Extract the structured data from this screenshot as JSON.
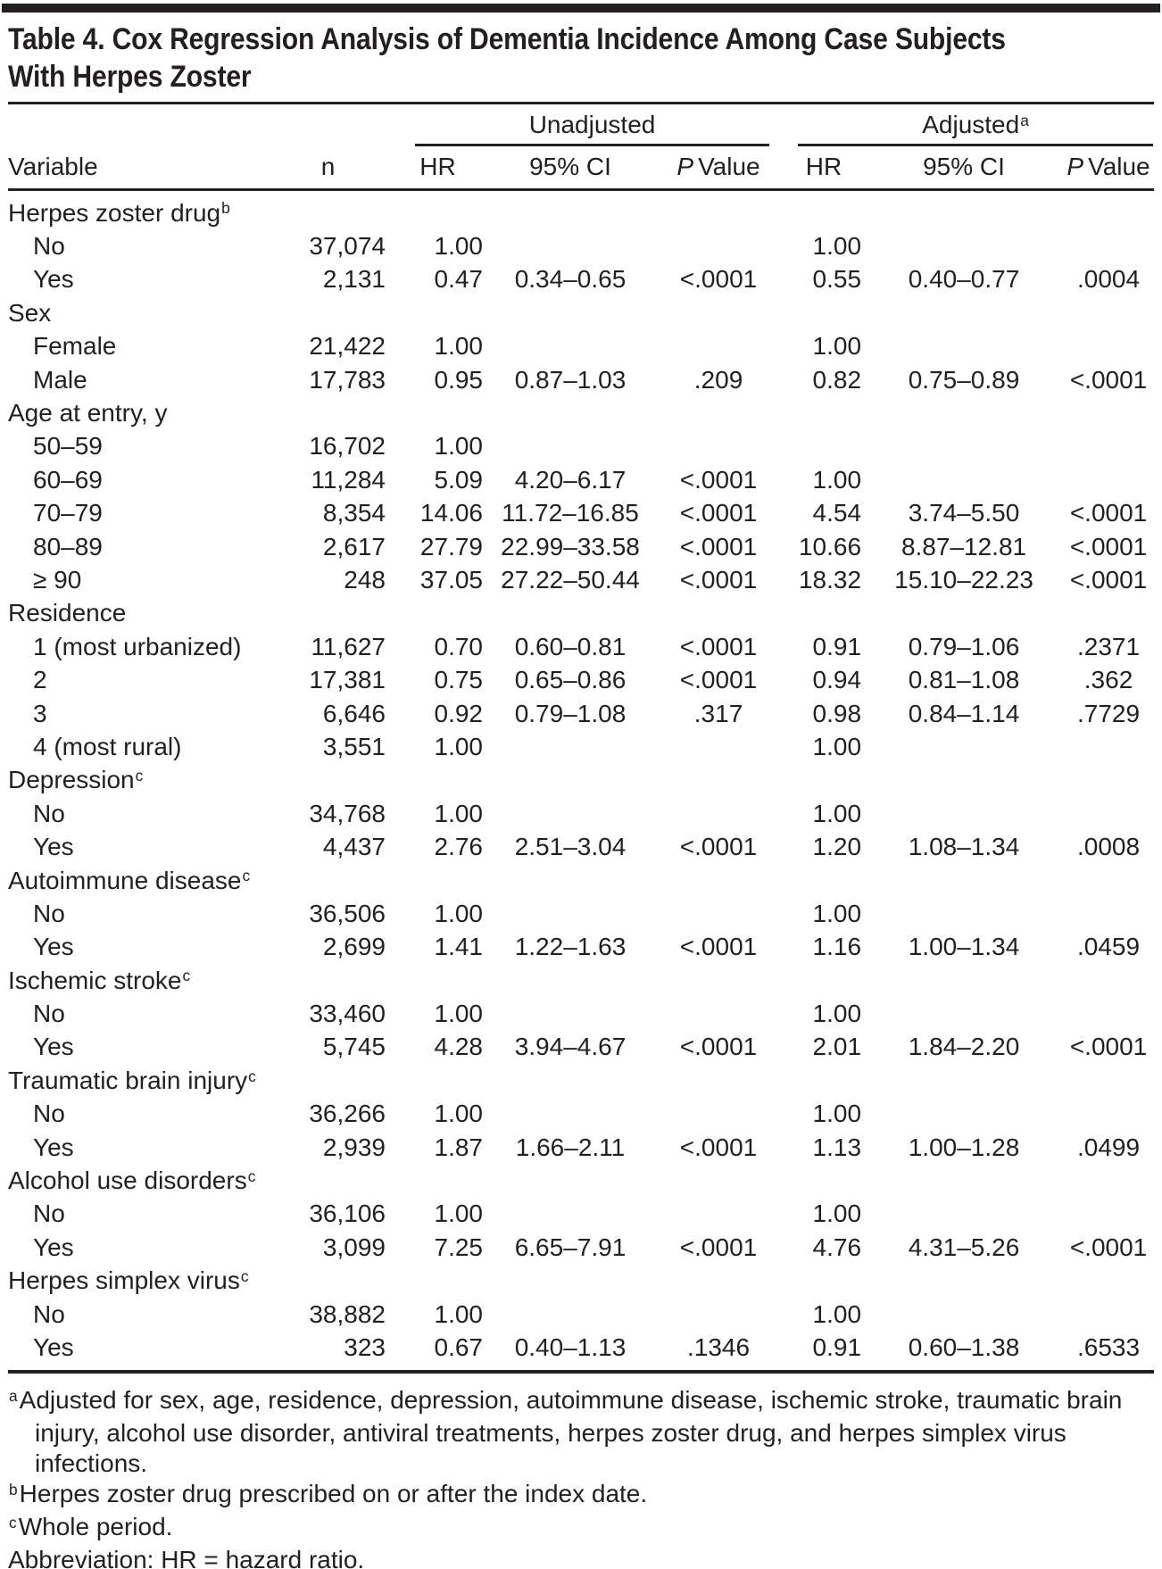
{
  "title": {
    "line1": "Table 4. Cox Regression Analysis of Dementia Incidence Among Case Subjects",
    "line2": "With Herpes Zoster"
  },
  "header": {
    "variable": "Variable",
    "n": "n",
    "unadjusted": "Unadjusted",
    "adjusted": "Adjusted",
    "adjusted_sup": "a",
    "hr": "HR",
    "ci": "95% CI",
    "p_italic": "P",
    "p_rest": "Value"
  },
  "rows": [
    {
      "type": "group",
      "label": "Herpes zoster drug",
      "sup": "b"
    },
    {
      "type": "item",
      "label": "No",
      "n": "37,074",
      "uhr": "1.00",
      "uci": "",
      "up": "",
      "ahr": "1.00",
      "aci": "",
      "ap": ""
    },
    {
      "type": "item",
      "label": "Yes",
      "n": "2,131",
      "uhr": "0.47",
      "uci": "0.34–0.65",
      "up": "<.0001",
      "ahr": "0.55",
      "aci": "0.40–0.77",
      "ap": ".0004"
    },
    {
      "type": "group",
      "label": "Sex",
      "sup": ""
    },
    {
      "type": "item",
      "label": "Female",
      "n": "21,422",
      "uhr": "1.00",
      "uci": "",
      "up": "",
      "ahr": "1.00",
      "aci": "",
      "ap": ""
    },
    {
      "type": "item",
      "label": "Male",
      "n": "17,783",
      "uhr": "0.95",
      "uci": "0.87–1.03",
      "up": ".209",
      "ahr": "0.82",
      "aci": "0.75–0.89",
      "ap": "<.0001"
    },
    {
      "type": "group",
      "label": "Age at entry, y",
      "sup": ""
    },
    {
      "type": "item",
      "label": "50–59",
      "n": "16,702",
      "uhr": "1.00",
      "uci": "",
      "up": "",
      "ahr": "",
      "aci": "",
      "ap": ""
    },
    {
      "type": "item",
      "label": "60–69",
      "n": "11,284",
      "uhr": "5.09",
      "uci": "4.20–6.17",
      "up": "<.0001",
      "ahr": "1.00",
      "aci": "",
      "ap": ""
    },
    {
      "type": "item",
      "label": "70–79",
      "n": "8,354",
      "uhr": "14.06",
      "uci": "11.72–16.85",
      "up": "<.0001",
      "ahr": "4.54",
      "aci": "3.74–5.50",
      "ap": "<.0001"
    },
    {
      "type": "item",
      "label": "80–89",
      "n": "2,617",
      "uhr": "27.79",
      "uci": "22.99–33.58",
      "up": "<.0001",
      "ahr": "10.66",
      "aci": "8.87–12.81",
      "ap": "<.0001"
    },
    {
      "type": "item",
      "label": "≥ 90",
      "n": "248",
      "uhr": "37.05",
      "uci": "27.22–50.44",
      "up": "<.0001",
      "ahr": "18.32",
      "aci": "15.10–22.23",
      "ap": "<.0001"
    },
    {
      "type": "group",
      "label": "Residence",
      "sup": ""
    },
    {
      "type": "item",
      "label": "1 (most urbanized)",
      "n": "11,627",
      "uhr": "0.70",
      "uci": "0.60–0.81",
      "up": "<.0001",
      "ahr": "0.91",
      "aci": "0.79–1.06",
      "ap": ".2371"
    },
    {
      "type": "item",
      "label": "2",
      "n": "17,381",
      "uhr": "0.75",
      "uci": "0.65–0.86",
      "up": "<.0001",
      "ahr": "0.94",
      "aci": "0.81–1.08",
      "ap": ".362"
    },
    {
      "type": "item",
      "label": "3",
      "n": "6,646",
      "uhr": "0.92",
      "uci": "0.79–1.08",
      "up": ".317",
      "ahr": "0.98",
      "aci": "0.84–1.14",
      "ap": ".7729"
    },
    {
      "type": "item",
      "label": "4 (most rural)",
      "n": "3,551",
      "uhr": "1.00",
      "uci": "",
      "up": "",
      "ahr": "1.00",
      "aci": "",
      "ap": ""
    },
    {
      "type": "group",
      "label": "Depression",
      "sup": "c"
    },
    {
      "type": "item",
      "label": "No",
      "n": "34,768",
      "uhr": "1.00",
      "uci": "",
      "up": "",
      "ahr": "1.00",
      "aci": "",
      "ap": ""
    },
    {
      "type": "item",
      "label": "Yes",
      "n": "4,437",
      "uhr": "2.76",
      "uci": "2.51–3.04",
      "up": "<.0001",
      "ahr": "1.20",
      "aci": "1.08–1.34",
      "ap": ".0008"
    },
    {
      "type": "group",
      "label": "Autoimmune disease",
      "sup": "c"
    },
    {
      "type": "item",
      "label": "No",
      "n": "36,506",
      "uhr": "1.00",
      "uci": "",
      "up": "",
      "ahr": "1.00",
      "aci": "",
      "ap": ""
    },
    {
      "type": "item",
      "label": "Yes",
      "n": "2,699",
      "uhr": "1.41",
      "uci": "1.22–1.63",
      "up": "<.0001",
      "ahr": "1.16",
      "aci": "1.00–1.34",
      "ap": ".0459"
    },
    {
      "type": "group",
      "label": "Ischemic stroke",
      "sup": "c"
    },
    {
      "type": "item",
      "label": "No",
      "n": "33,460",
      "uhr": "1.00",
      "uci": "",
      "up": "",
      "ahr": "1.00",
      "aci": "",
      "ap": ""
    },
    {
      "type": "item",
      "label": "Yes",
      "n": "5,745",
      "uhr": "4.28",
      "uci": "3.94–4.67",
      "up": "<.0001",
      "ahr": "2.01",
      "aci": "1.84–2.20",
      "ap": "<.0001"
    },
    {
      "type": "group",
      "label": "Traumatic brain injury",
      "sup": "c"
    },
    {
      "type": "item",
      "label": "No",
      "n": "36,266",
      "uhr": "1.00",
      "uci": "",
      "up": "",
      "ahr": "1.00",
      "aci": "",
      "ap": ""
    },
    {
      "type": "item",
      "label": "Yes",
      "n": "2,939",
      "uhr": "1.87",
      "uci": "1.66–2.11",
      "up": "<.0001",
      "ahr": "1.13",
      "aci": "1.00–1.28",
      "ap": ".0499"
    },
    {
      "type": "group",
      "label": "Alcohol use disorders",
      "sup": "c"
    },
    {
      "type": "item",
      "label": "No",
      "n": "36,106",
      "uhr": "1.00",
      "uci": "",
      "up": "",
      "ahr": "1.00",
      "aci": "",
      "ap": ""
    },
    {
      "type": "item",
      "label": "Yes",
      "n": "3,099",
      "uhr": "7.25",
      "uci": "6.65–7.91",
      "up": "<.0001",
      "ahr": "4.76",
      "aci": "4.31–5.26",
      "ap": "<.0001"
    },
    {
      "type": "group",
      "label": "Herpes simplex virus",
      "sup": "c"
    },
    {
      "type": "item",
      "label": "No",
      "n": "38,882",
      "uhr": "1.00",
      "uci": "",
      "up": "",
      "ahr": "1.00",
      "aci": "",
      "ap": ""
    },
    {
      "type": "item",
      "label": "Yes",
      "n": "323",
      "uhr": "0.67",
      "uci": "0.40–1.13",
      "up": ".1346",
      "ahr": "0.91",
      "aci": "0.60–1.38",
      "ap": ".6533"
    }
  ],
  "footnotes": [
    {
      "sup": "a",
      "text": "Adjusted for sex, age, residence, depression, autoimmune disease, ischemic stroke, traumatic brain injury, alcohol use disorder, antiviral treatments, herpes zoster drug, and herpes simplex virus infections."
    },
    {
      "sup": "b",
      "text": "Herpes zoster drug prescribed on or after the index date."
    },
    {
      "sup": "c",
      "text": "Whole period."
    },
    {
      "sup": "",
      "text": "Abbreviation: HR = hazard ratio."
    }
  ],
  "colors": {
    "text": "#231f20",
    "rule": "#231f20",
    "top_bar": "#231f20"
  }
}
